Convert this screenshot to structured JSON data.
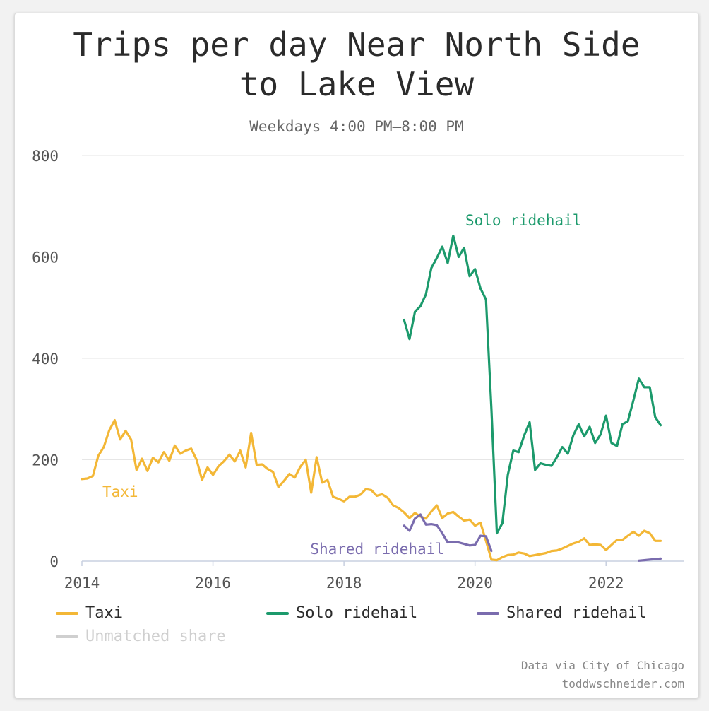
{
  "title_line1": "Trips per day Near North Side",
  "title_line2": "to Lake View",
  "subtitle": "Weekdays 4:00 PM–8:00 PM",
  "credits": {
    "line1": "Data via City of Chicago",
    "line2": "toddwschneider.com"
  },
  "colors": {
    "taxi": "#f3b736",
    "solo": "#1c9a6c",
    "shared": "#7a6cae",
    "unmatched": "#cfcfcf",
    "grid": "#e6e6e6",
    "axis": "#c8d0e0"
  },
  "legend": [
    {
      "label": "Taxi",
      "color": "#f3b736",
      "active": true
    },
    {
      "label": "Solo ridehail",
      "color": "#1c9a6c",
      "active": true
    },
    {
      "label": "Shared ridehail",
      "color": "#7a6cae",
      "active": true
    },
    {
      "label": "Unmatched share",
      "color": "#cfcfcf",
      "active": false
    }
  ],
  "chart_data": {
    "type": "line",
    "title": "Trips per day Near North Side to Lake View",
    "subtitle": "Weekdays 4:00 PM–8:00 PM",
    "xlabel": "",
    "ylabel": "",
    "xlim": [
      2014,
      2023
    ],
    "ylim": [
      0,
      800
    ],
    "yticks": [
      0,
      200,
      400,
      600,
      800
    ],
    "xticks": [
      2014,
      2016,
      2018,
      2020,
      2022
    ],
    "grid": true,
    "legend_position": "bottom",
    "series": [
      {
        "name": "Taxi",
        "color": "#f3b736",
        "label": "Taxi",
        "points": [
          [
            2014.0,
            162
          ],
          [
            2014.083,
            163
          ],
          [
            2014.167,
            168
          ],
          [
            2014.25,
            208
          ],
          [
            2014.333,
            225
          ],
          [
            2014.417,
            258
          ],
          [
            2014.5,
            278
          ],
          [
            2014.583,
            240
          ],
          [
            2014.667,
            257
          ],
          [
            2014.75,
            240
          ],
          [
            2014.833,
            180
          ],
          [
            2014.917,
            202
          ],
          [
            2015.0,
            178
          ],
          [
            2015.083,
            204
          ],
          [
            2015.167,
            195
          ],
          [
            2015.25,
            215
          ],
          [
            2015.333,
            198
          ],
          [
            2015.417,
            228
          ],
          [
            2015.5,
            212
          ],
          [
            2015.583,
            218
          ],
          [
            2015.667,
            222
          ],
          [
            2015.75,
            200
          ],
          [
            2015.833,
            160
          ],
          [
            2015.917,
            185
          ],
          [
            2016.0,
            170
          ],
          [
            2016.083,
            187
          ],
          [
            2016.167,
            197
          ],
          [
            2016.25,
            210
          ],
          [
            2016.333,
            197
          ],
          [
            2016.417,
            218
          ],
          [
            2016.5,
            185
          ],
          [
            2016.583,
            253
          ],
          [
            2016.667,
            190
          ],
          [
            2016.75,
            191
          ],
          [
            2016.833,
            182
          ],
          [
            2016.917,
            176
          ],
          [
            2017.0,
            146
          ],
          [
            2017.083,
            158
          ],
          [
            2017.167,
            172
          ],
          [
            2017.25,
            165
          ],
          [
            2017.333,
            186
          ],
          [
            2017.417,
            200
          ],
          [
            2017.5,
            135
          ],
          [
            2017.583,
            205
          ],
          [
            2017.667,
            155
          ],
          [
            2017.75,
            160
          ],
          [
            2017.833,
            127
          ],
          [
            2017.917,
            123
          ],
          [
            2018.0,
            118
          ],
          [
            2018.083,
            127
          ],
          [
            2018.167,
            127
          ],
          [
            2018.25,
            131
          ],
          [
            2018.333,
            142
          ],
          [
            2018.417,
            140
          ],
          [
            2018.5,
            129
          ],
          [
            2018.583,
            132
          ],
          [
            2018.667,
            125
          ],
          [
            2018.75,
            110
          ],
          [
            2018.833,
            105
          ],
          [
            2018.917,
            96
          ],
          [
            2019.0,
            85
          ],
          [
            2019.083,
            95
          ],
          [
            2019.167,
            88
          ],
          [
            2019.25,
            84
          ],
          [
            2019.333,
            98
          ],
          [
            2019.417,
            110
          ],
          [
            2019.5,
            85
          ],
          [
            2019.583,
            94
          ],
          [
            2019.667,
            97
          ],
          [
            2019.75,
            88
          ],
          [
            2019.833,
            80
          ],
          [
            2019.917,
            82
          ],
          [
            2020.0,
            70
          ],
          [
            2020.083,
            76
          ],
          [
            2020.167,
            40
          ],
          [
            2020.25,
            3
          ],
          [
            2020.333,
            2
          ],
          [
            2020.417,
            8
          ],
          [
            2020.5,
            12
          ],
          [
            2020.583,
            13
          ],
          [
            2020.667,
            17
          ],
          [
            2020.75,
            15
          ],
          [
            2020.833,
            10
          ],
          [
            2020.917,
            12
          ],
          [
            2021.0,
            14
          ],
          [
            2021.083,
            16
          ],
          [
            2021.167,
            20
          ],
          [
            2021.25,
            21
          ],
          [
            2021.333,
            25
          ],
          [
            2021.417,
            30
          ],
          [
            2021.5,
            35
          ],
          [
            2021.583,
            38
          ],
          [
            2021.667,
            45
          ],
          [
            2021.75,
            32
          ],
          [
            2021.833,
            33
          ],
          [
            2021.917,
            32
          ],
          [
            2022.0,
            22
          ],
          [
            2022.083,
            32
          ],
          [
            2022.167,
            42
          ],
          [
            2022.25,
            42
          ],
          [
            2022.333,
            50
          ],
          [
            2022.417,
            58
          ],
          [
            2022.5,
            50
          ],
          [
            2022.583,
            60
          ],
          [
            2022.667,
            55
          ],
          [
            2022.75,
            40
          ],
          [
            2022.833,
            40
          ]
        ]
      },
      {
        "name": "Solo ridehail",
        "color": "#1c9a6c",
        "label": "Solo ridehail",
        "points": [
          [
            2018.917,
            476
          ],
          [
            2019.0,
            438
          ],
          [
            2019.083,
            492
          ],
          [
            2019.167,
            503
          ],
          [
            2019.25,
            526
          ],
          [
            2019.333,
            578
          ],
          [
            2019.417,
            598
          ],
          [
            2019.5,
            620
          ],
          [
            2019.583,
            588
          ],
          [
            2019.667,
            642
          ],
          [
            2019.75,
            600
          ],
          [
            2019.833,
            618
          ],
          [
            2019.917,
            562
          ],
          [
            2020.0,
            576
          ],
          [
            2020.083,
            538
          ],
          [
            2020.167,
            516
          ],
          [
            2020.25,
            300
          ],
          [
            2020.333,
            55
          ],
          [
            2020.417,
            75
          ],
          [
            2020.5,
            170
          ],
          [
            2020.583,
            218
          ],
          [
            2020.667,
            215
          ],
          [
            2020.75,
            248
          ],
          [
            2020.833,
            274
          ],
          [
            2020.917,
            180
          ],
          [
            2021.0,
            193
          ],
          [
            2021.083,
            190
          ],
          [
            2021.167,
            188
          ],
          [
            2021.25,
            205
          ],
          [
            2021.333,
            225
          ],
          [
            2021.417,
            212
          ],
          [
            2021.5,
            248
          ],
          [
            2021.583,
            270
          ],
          [
            2021.667,
            246
          ],
          [
            2021.75,
            265
          ],
          [
            2021.833,
            233
          ],
          [
            2021.917,
            250
          ],
          [
            2022.0,
            287
          ],
          [
            2022.083,
            233
          ],
          [
            2022.167,
            227
          ],
          [
            2022.25,
            270
          ],
          [
            2022.333,
            276
          ],
          [
            2022.417,
            317
          ],
          [
            2022.5,
            360
          ],
          [
            2022.583,
            343
          ],
          [
            2022.667,
            343
          ],
          [
            2022.75,
            284
          ],
          [
            2022.833,
            268
          ]
        ]
      },
      {
        "name": "Shared ridehail",
        "color": "#7a6cae",
        "label": "Shared ridehail",
        "points": [
          [
            2018.917,
            70
          ],
          [
            2019.0,
            60
          ],
          [
            2019.083,
            84
          ],
          [
            2019.167,
            92
          ],
          [
            2019.25,
            72
          ],
          [
            2019.333,
            73
          ],
          [
            2019.417,
            71
          ],
          [
            2019.5,
            55
          ],
          [
            2019.583,
            37
          ],
          [
            2019.667,
            38
          ],
          [
            2019.75,
            37
          ],
          [
            2019.833,
            34
          ],
          [
            2019.917,
            31
          ],
          [
            2020.0,
            32
          ],
          [
            2020.083,
            50
          ],
          [
            2020.167,
            49
          ],
          [
            2020.25,
            20
          ]
        ],
        "points_late": [
          [
            2022.5,
            1
          ],
          [
            2022.583,
            2
          ],
          [
            2022.667,
            3
          ],
          [
            2022.75,
            4
          ],
          [
            2022.833,
            5
          ]
        ]
      }
    ]
  }
}
